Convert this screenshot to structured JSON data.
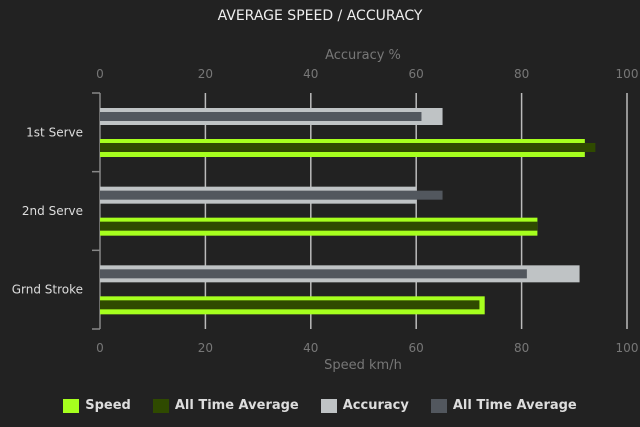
{
  "chart_data": {
    "type": "bar",
    "orientation": "horizontal",
    "title": "AVERAGE SPEED / ACCURACY",
    "categories": [
      "1st Serve",
      "2nd Serve",
      "Grnd Stroke"
    ],
    "top_axis": {
      "label": "Accuracy %",
      "range": [
        0,
        100
      ],
      "ticks": [
        "0",
        "20",
        "40",
        "60",
        "80",
        "100"
      ]
    },
    "bottom_axis": {
      "label": "Speed km/h",
      "range": [
        0,
        100
      ],
      "ticks": [
        "0",
        "20",
        "40",
        "60",
        "80",
        "100"
      ]
    },
    "grid": true,
    "legend_position": "bottom",
    "series": [
      {
        "name": "Speed",
        "axis": "bottom",
        "color": "#a6ff1e",
        "values": [
          92,
          83,
          73
        ]
      },
      {
        "name": "All Time Average",
        "axis": "bottom",
        "color": "#2f4a00",
        "values": [
          94,
          83,
          72
        ]
      },
      {
        "name": "Accuracy",
        "axis": "top",
        "color": "#bfc3c5",
        "values": [
          65,
          60,
          91
        ]
      },
      {
        "name": "All Time Average",
        "axis": "top",
        "color": "#52575e",
        "values": [
          61,
          65,
          81
        ]
      }
    ]
  }
}
